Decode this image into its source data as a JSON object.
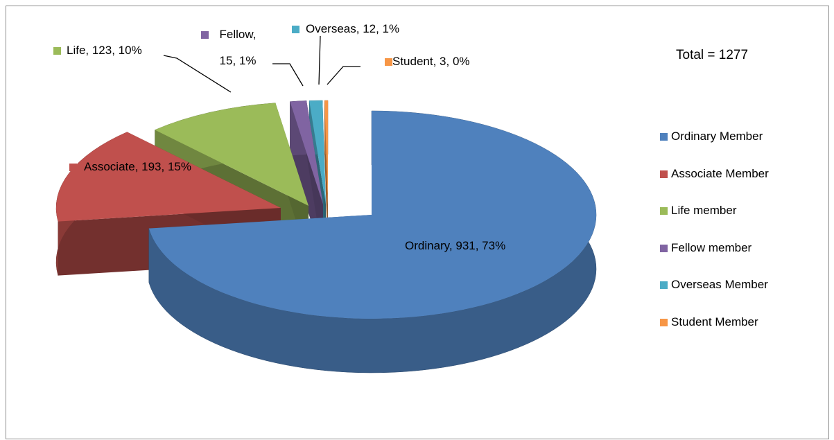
{
  "chart_data": {
    "type": "pie",
    "annotation": "Total = 1277",
    "categories": [
      "Ordinary Member",
      "Associate Member",
      "Life member",
      "Fellow member",
      "Overseas Member",
      "Student Member"
    ],
    "values": [
      931,
      193,
      123,
      15,
      12,
      3
    ],
    "value_labels": [
      "Ordinary, 931, 73%",
      "Associate, 193, 15%",
      "Life, 123, 10%",
      "Fellow, 15, 1%",
      "Overseas, 12, 1%",
      "Student, 3, 0%"
    ],
    "colors": [
      "#4f81bd",
      "#c0504d",
      "#9bbb59",
      "#8064a2",
      "#4bacc6",
      "#f79646"
    ],
    "legend": "right"
  }
}
